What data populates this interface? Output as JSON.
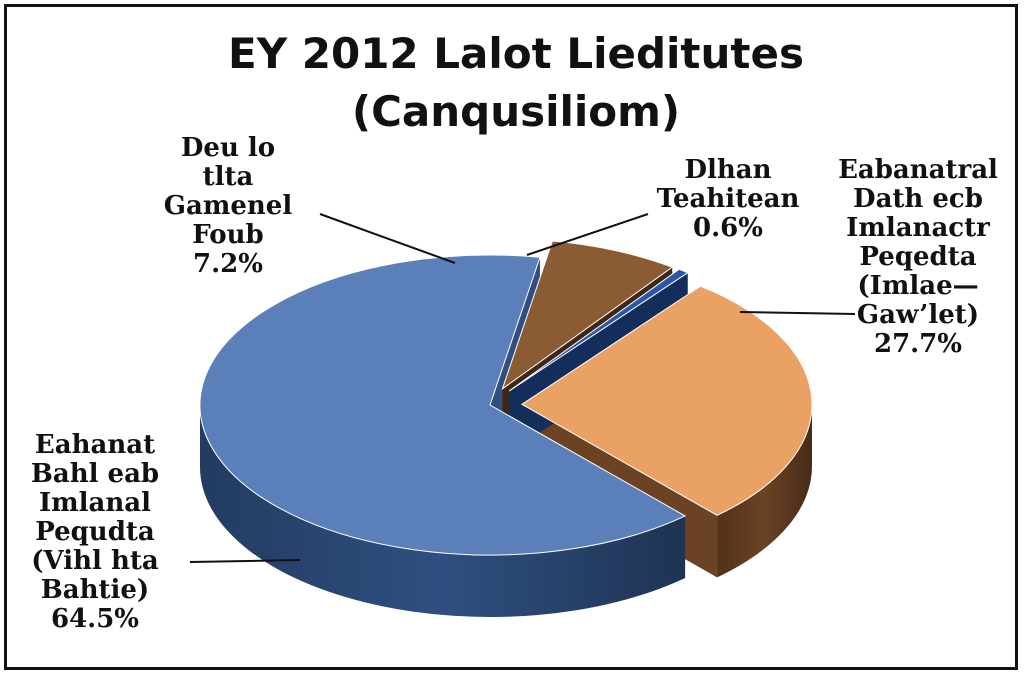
{
  "chart_data": {
    "type": "pie",
    "title": "EY 2012 Lalot Lieditutes",
    "subtitle": "(Canqusiliom)",
    "slices": [
      {
        "label_lines": [
          "Eabanatral",
          "Dath ecb",
          "Imlanactr",
          "Peqedta",
          "(Imlae—",
          "Gaw’let)"
        ],
        "value_label": "27.7%",
        "value": 27.7,
        "color": "#e9a263",
        "side_color": "#6b4224",
        "exploded": true
      },
      {
        "label_lines": [
          "Eahanat",
          "Bahl eab",
          "Imlanal",
          "Pequdta",
          "(Vihl hta",
          "Bahtie)"
        ],
        "value_label": "64.5%",
        "value": 64.5,
        "color": "#5a7fb9",
        "side_color": "#2f4f80",
        "exploded": false
      },
      {
        "label_lines": [
          "Deu lo",
          "tlta",
          "Gamenel",
          "Foub"
        ],
        "value_label": "7.2%",
        "value": 7.2,
        "color": "#8b5c34",
        "side_color": "#3e2714",
        "exploded": true
      },
      {
        "label_lines": [
          "Dlhan",
          "Teahitean"
        ],
        "value_label": "0.6%",
        "value": 0.6,
        "color": "#2a57a6",
        "side_color": "#142e5c",
        "exploded": true
      }
    ],
    "legend": "none"
  }
}
